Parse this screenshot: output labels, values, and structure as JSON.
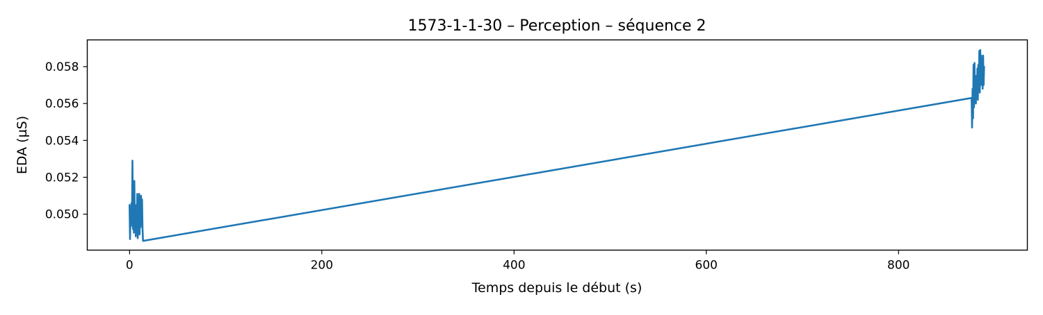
{
  "chart_data": {
    "type": "line",
    "title": "1573-1-1-30 – Perception – séquence 2",
    "xlabel": "Temps depuis le début (s)",
    "ylabel": "EDA (µS)",
    "xlim": [
      -44,
      934
    ],
    "ylim": [
      0.04805,
      0.05945
    ],
    "xticks": [
      0,
      200,
      400,
      600,
      800
    ],
    "xtick_labels": [
      "0",
      "200",
      "400",
      "600",
      "800"
    ],
    "yticks": [
      0.05,
      0.052,
      0.054,
      0.056,
      0.058
    ],
    "ytick_labels": [
      "0.050",
      "0.052",
      "0.054",
      "0.056",
      "0.058"
    ],
    "grid": false,
    "legend": "none",
    "line_color": "#1f77b4",
    "series": [
      {
        "x": [
          0.0,
          0.5,
          1.0,
          1.5,
          2.0,
          2.5,
          3.0,
          3.5,
          4.0,
          4.5,
          5.0,
          5.5,
          6.0,
          6.5,
          7.0,
          7.5,
          8.0,
          8.5,
          9.0,
          9.5,
          10.0,
          10.5,
          11.0,
          11.5,
          12.0,
          12.5,
          13.0,
          13.5,
          14.0,
          876.0,
          876.5,
          877.0,
          877.5,
          878.0,
          878.5,
          879.0,
          879.5,
          880.0,
          880.5,
          881.0,
          881.5,
          882.0,
          882.5,
          883.0,
          883.5,
          884.0,
          884.5,
          885.0,
          885.5,
          886.0,
          886.5,
          887.0,
          887.5,
          888.0,
          888.5,
          889.0
        ],
        "y": [
          0.0505,
          0.04865,
          0.0501,
          0.04935,
          0.0506,
          0.0496,
          0.0529,
          0.0492,
          0.0512,
          0.049,
          0.0518,
          0.0498,
          0.0505,
          0.0488,
          0.0499,
          0.0492,
          0.0511,
          0.0487,
          0.0505,
          0.0494,
          0.0511,
          0.0489,
          0.0501,
          0.0493,
          0.051,
          0.0496,
          0.0508,
          0.0492,
          0.04855,
          0.0563,
          0.0547,
          0.0568,
          0.0552,
          0.0581,
          0.0558,
          0.0582,
          0.0564,
          0.0572,
          0.056,
          0.0575,
          0.0566,
          0.0579,
          0.0562,
          0.0581,
          0.0569,
          0.05885,
          0.0566,
          0.0589,
          0.057,
          0.0586,
          0.0572,
          0.0584,
          0.0568,
          0.0586,
          0.057,
          0.058
        ]
      }
    ]
  }
}
